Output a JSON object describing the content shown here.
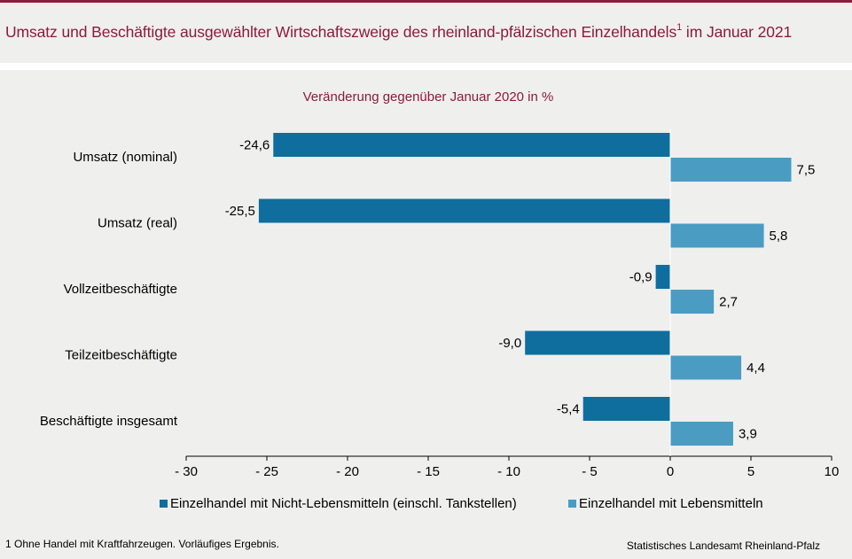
{
  "header": {
    "title": "Umsatz und Beschäftigte ausgewählter Wirtschaftszweige des rheinland-pfälzischen Einzelhandels",
    "title_sup": "1",
    "title_suffix": " im Januar 2021"
  },
  "chart_data": {
    "type": "bar",
    "orientation": "horizontal",
    "subtitle": "Veränderung gegenüber Januar 2020 in %",
    "categories": [
      "Umsatz (nominal)",
      "Umsatz (real)",
      "Vollzeitbeschäftigte",
      "Teilzeitbeschäftigte",
      "Beschäftigte insgesamt"
    ],
    "series": [
      {
        "name": "Einzelhandel mit Nicht-Lebensmitteln (einschl. Tankstellen)",
        "color": "#0f6e9e",
        "values": [
          -24.6,
          -25.5,
          -0.9,
          -9.0,
          -5.4
        ],
        "labels": [
          "-24,6",
          "-25,5",
          "-0,9",
          "-9,0",
          "-5,4"
        ]
      },
      {
        "name": "Einzelhandel mit Lebensmitteln",
        "color": "#4a9cc2",
        "values": [
          7.5,
          5.8,
          2.7,
          4.4,
          3.9
        ],
        "labels": [
          "7,5",
          "5,8",
          "2,7",
          "4,4",
          "3,9"
        ]
      }
    ],
    "xlim": [
      -30,
      10
    ],
    "xticks": [
      -30,
      -25,
      -20,
      -15,
      -10,
      -5,
      0,
      5,
      10
    ],
    "xtick_labels": [
      "- 30",
      "- 25",
      "- 20",
      "- 15",
      "- 10",
      "- 5",
      "0",
      "5",
      "10"
    ],
    "grid": false,
    "legend_position": "bottom"
  },
  "legend": {
    "item1": "Einzelhandel mit Nicht-Lebensmitteln (einschl. Tankstellen)",
    "item2": "Einzelhandel mit Lebensmitteln"
  },
  "footer": {
    "footnote": "1 Ohne Handel mit Kraftfahrzeugen.  Vorläufiges Ergebnis.",
    "source": "Statistisches Landesamt Rheinland-Pfalz"
  }
}
